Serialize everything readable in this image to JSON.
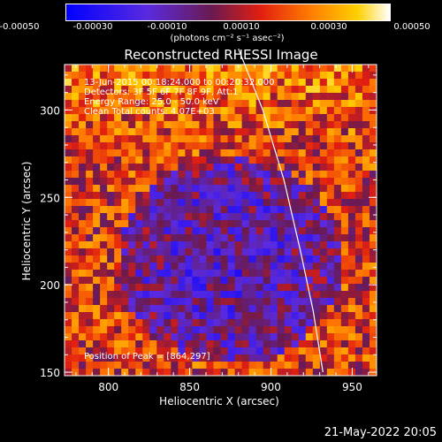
{
  "colorbar": {
    "tick_labels": [
      "-0.00050",
      "-0.00030",
      "-0.00010",
      "0.00010",
      "0.00030",
      "0.00050"
    ],
    "range": [
      -0.0005,
      0.0005
    ],
    "units": "(photons cm⁻² s⁻¹ asec⁻²)",
    "colormap": "blue-purple-red-orange-yellow-white"
  },
  "chart_data": {
    "type": "heatmap",
    "title": "Reconstructed RHESSI Image",
    "xlabel": "Heliocentric X (arcsec)",
    "ylabel": "Heliocentric Y (arcsec)",
    "xlim": [
      773,
      965
    ],
    "ylim": [
      148,
      326
    ],
    "x_ticks": [
      800,
      850,
      900,
      950
    ],
    "y_ticks": [
      150,
      200,
      250,
      300
    ],
    "x_tick_labels": [
      "800",
      "850",
      "900",
      "950"
    ],
    "y_tick_labels": [
      "150",
      "200",
      "250",
      "300"
    ],
    "annotations": [
      "13-Jun-2015 00:18:24.000 to 00:20:32.000",
      "Detectors: 3F 5F 6F 7F 8F 9F, Att:1",
      "Energy Range: 25.0 - 50.0 keV",
      "Clean      Total counts: 4.07E+03",
      "Position of Peak = [864,297]"
    ],
    "peak": [
      864,
      297
    ],
    "limb_curve_points": [
      [
        880,
        335
      ],
      [
        895,
        300
      ],
      [
        908,
        260
      ],
      [
        918,
        220
      ],
      [
        926,
        185
      ],
      [
        932,
        150
      ]
    ]
  },
  "footer": {
    "timestamp": "21-May-2022 20:05"
  },
  "colors": {
    "background": "#000000",
    "foreground": "#ffffff",
    "limb": "#ffffff"
  }
}
